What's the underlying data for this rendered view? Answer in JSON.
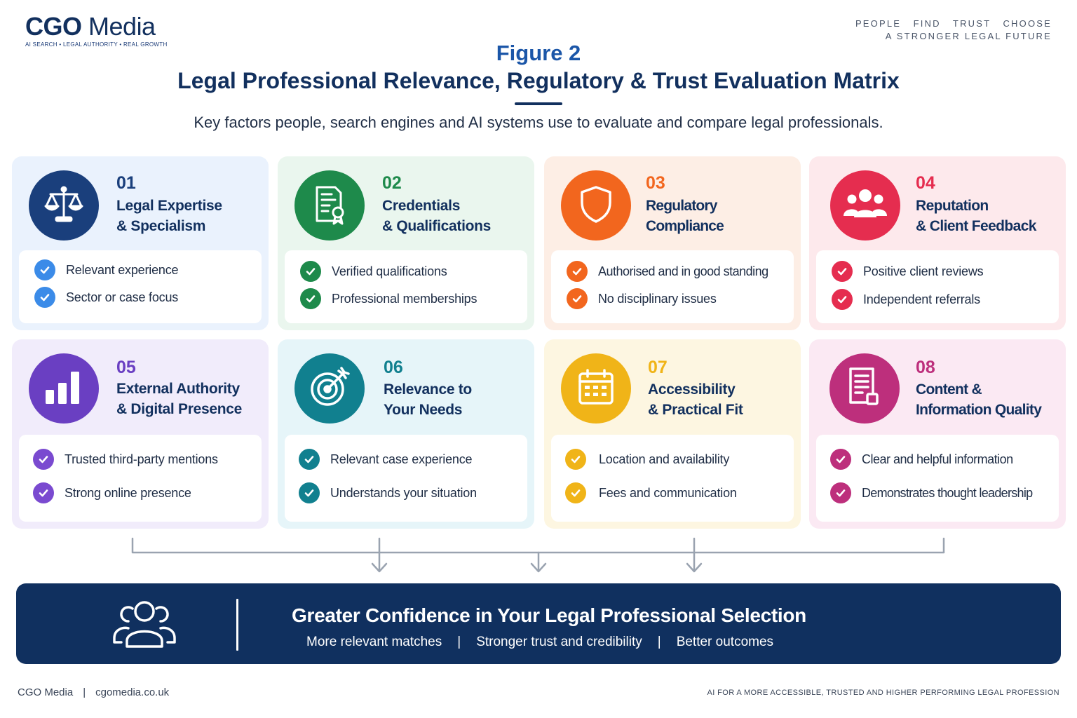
{
  "brand": {
    "logo_bold": "CGO",
    "logo_light": "Media",
    "tag": "AI SEARCH • LEGAL AUTHORITY • REAL GROWTH",
    "tagline_1": "PEOPLE   FIND   TRUST   CHOOSE",
    "tagline_2": "A STRONGER LEGAL FUTURE"
  },
  "header": {
    "figure_label": "Figure 2",
    "title": "Legal Professional Relevance, Regulatory & Trust Evaluation Matrix",
    "subtitle": "Key factors people, search engines and AI systems use to evaluate and compare legal professionals."
  },
  "cards": [
    {
      "num": "01",
      "title_1": "Legal Expertise",
      "title_2": "& Specialism",
      "icon": "scales-icon",
      "accent": "#1a3f7c",
      "check": "#3b8be8",
      "bg": "#eaf2fd",
      "items": [
        "Relevant experience",
        "Sector or case focus"
      ]
    },
    {
      "num": "02",
      "title_1": "Credentials",
      "title_2": "& Qualifications",
      "icon": "certificate-icon",
      "accent": "#1e8a4b",
      "check": "#1e8a4b",
      "bg": "#eaf6ee",
      "items": [
        "Verified qualifications",
        "Professional memberships"
      ]
    },
    {
      "num": "03",
      "title_1": "Regulatory Compliance",
      "title_2": "",
      "icon": "shield-icon",
      "accent": "#f2661e",
      "check": "#f2661e",
      "bg": "#fdeee5",
      "items": [
        "Authorised and in good standing",
        "No disciplinary issues"
      ]
    },
    {
      "num": "04",
      "title_1": "Reputation",
      "title_2": "& Client Feedback",
      "icon": "people-group-icon",
      "accent": "#e52d4f",
      "check": "#e52d4f",
      "bg": "#fde9ec",
      "items": [
        "Positive client reviews",
        "Independent referrals"
      ]
    },
    {
      "num": "05",
      "title_1": "External Authority",
      "title_2": "& Digital Presence",
      "icon": "bar-chart-icon",
      "accent": "#6a3fc2",
      "check": "#7a4ad0",
      "bg": "#f1ecfb",
      "items": [
        "Trusted third-party mentions",
        "Strong online presence"
      ]
    },
    {
      "num": "06",
      "title_1": "Relevance to",
      "title_2": "Your Needs",
      "icon": "target-icon",
      "accent": "#11808f",
      "check": "#11808f",
      "bg": "#e6f5f9",
      "items": [
        "Relevant case experience",
        "Understands your situation"
      ]
    },
    {
      "num": "07",
      "title_1": "Accessibility",
      "title_2": "& Practical Fit",
      "icon": "calendar-icon",
      "accent": "#f0b418",
      "check": "#f0b418",
      "bg": "#fdf6e1",
      "items": [
        "Location and availability",
        "Fees and communication"
      ]
    },
    {
      "num": "08",
      "title_1": "Content &",
      "title_2": "Information Quality",
      "icon": "document-icon",
      "accent": "#bd2f7c",
      "check": "#bd2f7c",
      "bg": "#fbe9f3",
      "items": [
        "Clear and helpful information",
        "Demonstrates thought leadership"
      ]
    }
  ],
  "banner": {
    "title": "Greater Confidence in Your Legal Professional Selection",
    "points": [
      "More relevant matches",
      "Stronger trust and credibility",
      "Better outcomes"
    ],
    "separator": "|"
  },
  "footer": {
    "brand": "CGO Media",
    "separator": "|",
    "site": "cgomedia.co.uk",
    "right": "AI FOR A MORE ACCESSIBLE, TRUSTED AND HIGHER PERFORMING LEGAL PROFESSION"
  }
}
